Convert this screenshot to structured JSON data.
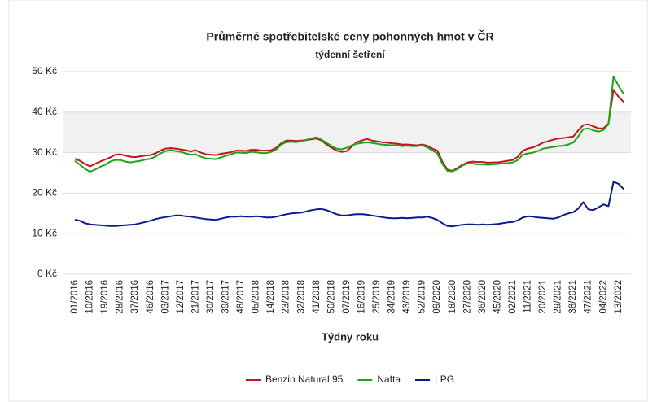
{
  "chart_data": {
    "type": "line",
    "title": "Průměrné spotřebitelské ceny pohonných hmot v ČR",
    "subtitle": "týdenní šetření",
    "x_label": "Týdny roku",
    "categories": [
      "01/2016",
      null,
      null,
      "10/2016",
      null,
      null,
      "19/2016",
      null,
      null,
      "28/2016",
      null,
      null,
      "37/2016",
      null,
      null,
      "46/2016",
      null,
      null,
      "03/2017",
      null,
      null,
      "12/2017",
      null,
      null,
      "21/2017",
      null,
      null,
      "30/2017",
      null,
      null,
      "39/2017",
      null,
      null,
      "48/2017",
      null,
      null,
      "05/2018",
      null,
      null,
      "14/2018",
      null,
      null,
      "23/2018",
      null,
      null,
      "32/2018",
      null,
      null,
      "41/2018",
      null,
      null,
      "50/2018",
      null,
      null,
      "07/2019",
      null,
      null,
      "16/2019",
      null,
      null,
      "25/2019",
      null,
      null,
      "34/2019",
      null,
      null,
      "43/2019",
      null,
      null,
      "52/2019",
      null,
      null,
      "09/2020",
      null,
      null,
      "18/2020",
      null,
      null,
      "27/2020",
      null,
      null,
      "36/2020",
      null,
      null,
      "45/2020",
      null,
      null,
      "02/2021",
      null,
      null,
      "11/2021",
      null,
      null,
      "20/2021",
      null,
      null,
      "29/2021",
      null,
      null,
      "38/2021",
      null,
      null,
      "47/2021",
      null,
      null,
      "04/2022",
      null,
      null,
      "13/2022",
      null
    ],
    "series": [
      {
        "name": "Benzin Natural 95",
        "color": "#c0141e",
        "values": [
          28.5,
          28.0,
          27.2,
          26.6,
          27.2,
          27.8,
          28.3,
          28.8,
          29.5,
          29.6,
          29.3,
          29.0,
          28.9,
          29.1,
          29.3,
          29.4,
          29.8,
          30.5,
          31.0,
          31.1,
          31.0,
          30.8,
          30.6,
          30.3,
          30.6,
          30.0,
          29.6,
          29.5,
          29.4,
          29.7,
          29.9,
          30.1,
          30.5,
          30.5,
          30.4,
          30.7,
          30.7,
          30.5,
          30.5,
          30.6,
          31.2,
          32.3,
          33.0,
          33.0,
          32.9,
          33.0,
          33.1,
          33.3,
          33.5,
          33.0,
          32.0,
          31.2,
          30.5,
          30.2,
          30.4,
          31.5,
          32.6,
          33.0,
          33.4,
          33.0,
          32.8,
          32.6,
          32.5,
          32.3,
          32.2,
          32.0,
          32.0,
          31.9,
          31.8,
          32.0,
          31.7,
          31.0,
          30.5,
          27.8,
          25.8,
          25.5,
          26.2,
          27.0,
          27.6,
          27.8,
          27.7,
          27.7,
          27.5,
          27.6,
          27.6,
          27.8,
          28.0,
          28.2,
          29.0,
          30.5,
          31.0,
          31.3,
          31.8,
          32.5,
          32.8,
          33.2,
          33.5,
          33.6,
          33.8,
          34.0,
          35.5,
          36.8,
          37.0,
          36.5,
          36.0,
          36.0,
          37.2,
          45.5,
          43.8,
          42.5
        ]
      },
      {
        "name": "Nafta",
        "color": "#1aa51a",
        "values": [
          28.0,
          27.0,
          26.0,
          25.3,
          25.8,
          26.5,
          27.0,
          27.8,
          28.2,
          28.2,
          27.8,
          27.6,
          27.8,
          28.0,
          28.3,
          28.5,
          29.0,
          29.8,
          30.4,
          30.6,
          30.4,
          30.2,
          29.8,
          29.5,
          29.6,
          29.0,
          28.6,
          28.5,
          28.4,
          28.8,
          29.2,
          29.6,
          30.0,
          30.0,
          29.9,
          30.2,
          30.1,
          29.9,
          29.9,
          30.2,
          30.8,
          32.0,
          32.6,
          32.7,
          32.6,
          32.8,
          33.2,
          33.5,
          33.8,
          33.2,
          32.4,
          31.6,
          31.0,
          30.8,
          31.2,
          31.8,
          32.2,
          32.4,
          32.6,
          32.4,
          32.2,
          32.0,
          31.9,
          31.8,
          31.8,
          31.6,
          31.7,
          31.6,
          31.6,
          31.8,
          31.3,
          30.6,
          29.8,
          27.2,
          25.5,
          25.4,
          25.9,
          26.8,
          27.3,
          27.3,
          27.1,
          27.1,
          27.0,
          27.1,
          27.2,
          27.3,
          27.4,
          27.6,
          28.2,
          29.5,
          29.8,
          30.0,
          30.4,
          31.0,
          31.2,
          31.4,
          31.6,
          31.7,
          32.0,
          32.5,
          34.0,
          35.8,
          36.0,
          35.5,
          35.2,
          35.6,
          37.0,
          48.8,
          46.5,
          44.5
        ]
      },
      {
        "name": "LPG",
        "color": "#0a1a8c",
        "values": [
          13.5,
          13.2,
          12.6,
          12.3,
          12.2,
          12.1,
          12.0,
          11.9,
          11.9,
          12.0,
          12.1,
          12.2,
          12.3,
          12.6,
          12.9,
          13.2,
          13.6,
          13.9,
          14.1,
          14.3,
          14.5,
          14.5,
          14.3,
          14.2,
          14.0,
          13.8,
          13.6,
          13.5,
          13.4,
          13.7,
          14.0,
          14.2,
          14.2,
          14.3,
          14.2,
          14.2,
          14.3,
          14.2,
          14.0,
          14.0,
          14.2,
          14.5,
          14.8,
          15.0,
          15.1,
          15.2,
          15.5,
          15.8,
          16.0,
          16.1,
          15.8,
          15.3,
          14.8,
          14.5,
          14.5,
          14.7,
          14.8,
          14.8,
          14.7,
          14.5,
          14.3,
          14.1,
          13.9,
          13.8,
          13.8,
          13.9,
          13.8,
          13.9,
          14.0,
          14.0,
          14.2,
          13.9,
          13.4,
          12.6,
          11.9,
          11.8,
          12.0,
          12.2,
          12.3,
          12.3,
          12.2,
          12.3,
          12.2,
          12.3,
          12.4,
          12.6,
          12.8,
          12.9,
          13.3,
          14.0,
          14.3,
          14.2,
          14.0,
          13.9,
          13.8,
          13.7,
          14.0,
          14.6,
          15.0,
          15.3,
          16.2,
          17.8,
          16.0,
          15.8,
          16.5,
          17.2,
          16.8,
          22.8,
          22.3,
          21.0
        ]
      }
    ],
    "ylim": [
      0,
      50
    ],
    "yticks": [
      {
        "value": 0,
        "label": "0 Kč"
      },
      {
        "value": 10,
        "label": "10 Kč"
      },
      {
        "value": 20,
        "label": "20 Kč"
      },
      {
        "value": 30,
        "label": "30 Kč"
      },
      {
        "value": 40,
        "label": "40 Kč"
      },
      {
        "value": 50,
        "label": "50 Kč"
      }
    ],
    "grid": true,
    "legend": "bottom"
  }
}
